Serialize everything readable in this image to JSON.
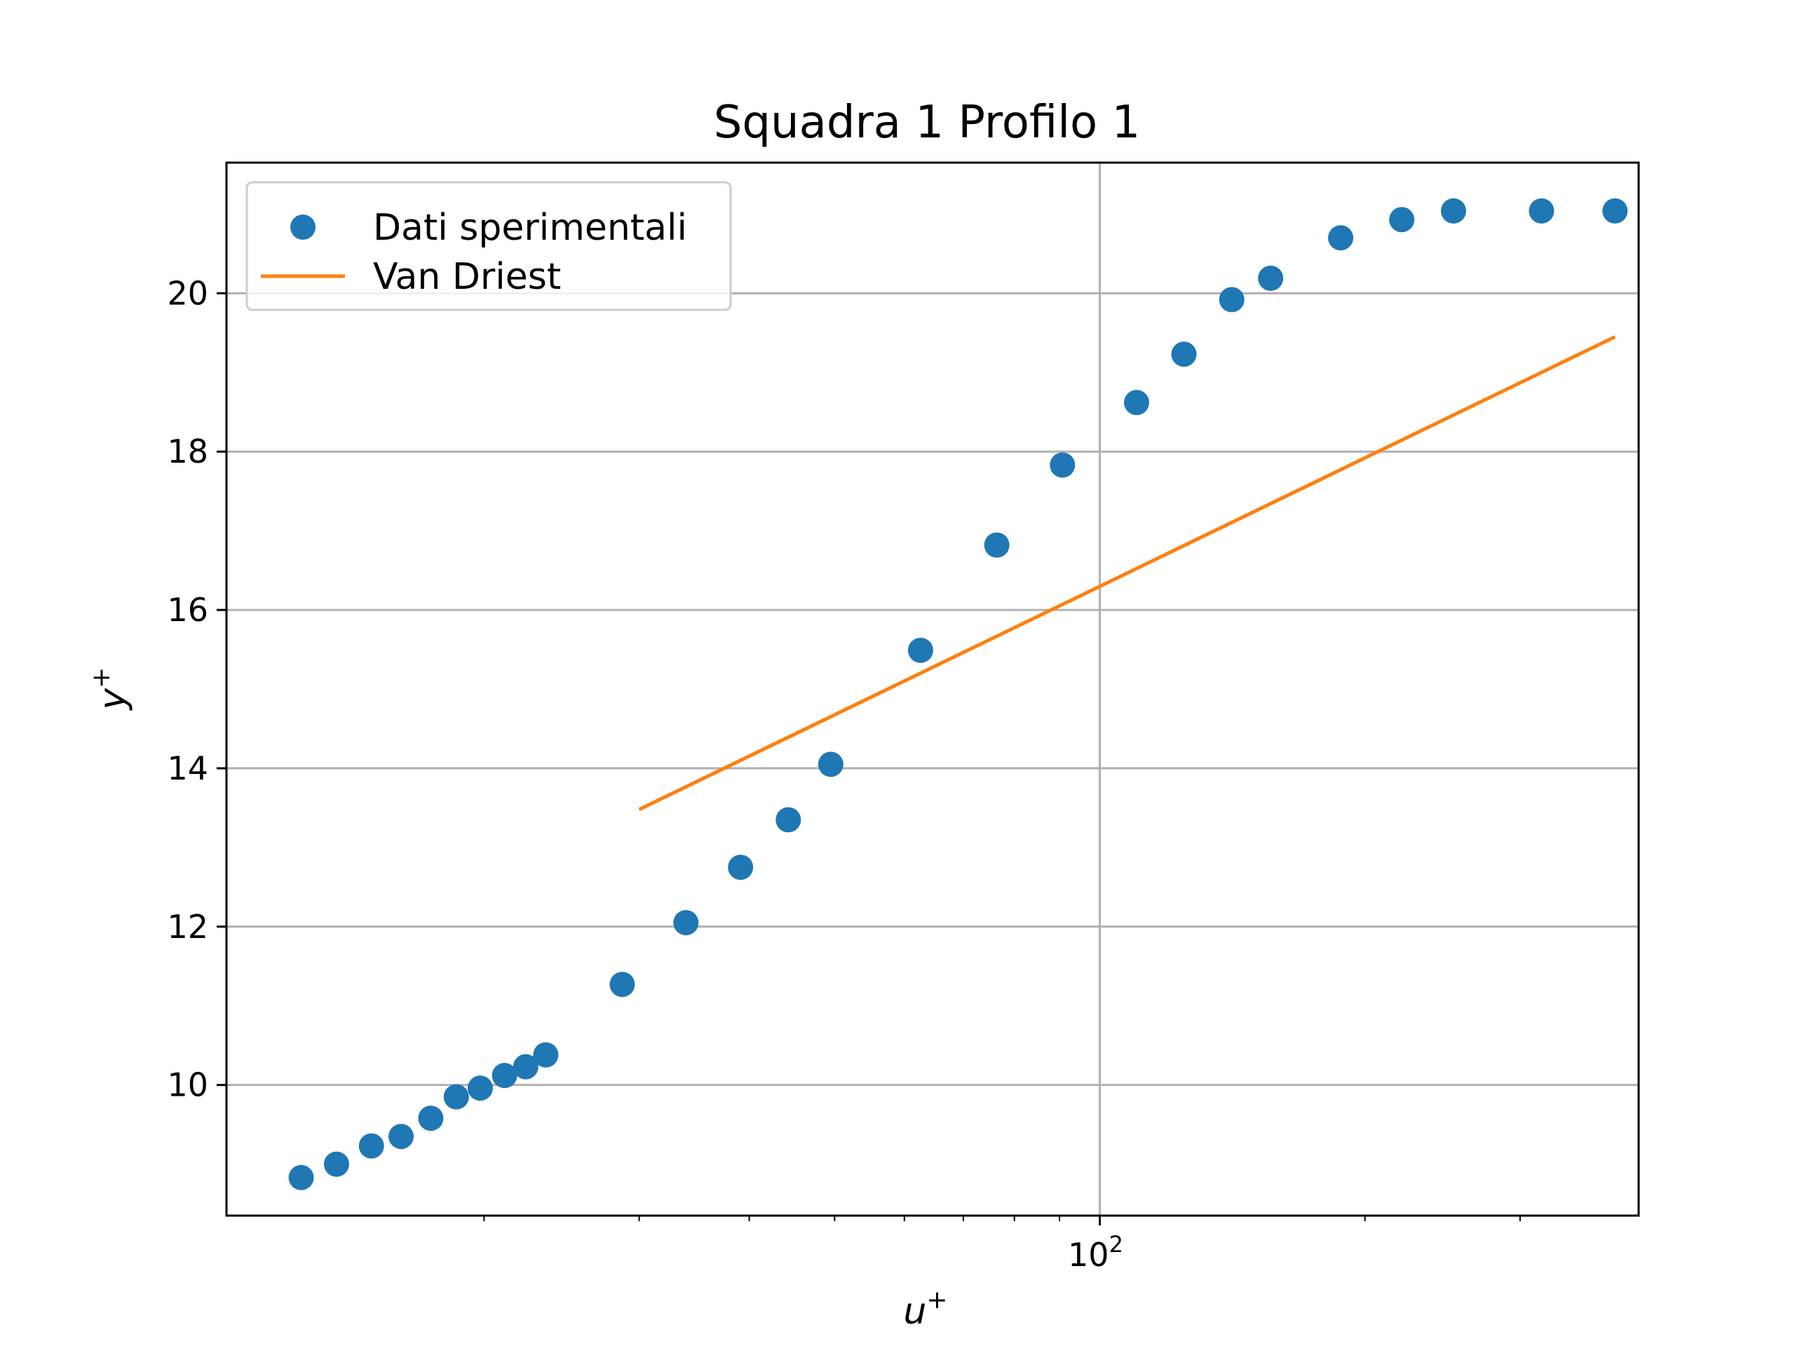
{
  "chart_data": {
    "type": "scatter",
    "title": "Squadra 1 Profilo 1",
    "xlabel": "u",
    "xlabel_sup": "+",
    "ylabel": "y",
    "ylabel_sup": "+",
    "xscale": "log",
    "xlim": [
      10.2,
      409
    ],
    "ylim": [
      8.35,
      21.65
    ],
    "grid": true,
    "legend_position": "upper left",
    "x_major_ticks": [
      {
        "value": 100,
        "base": "10",
        "exp": "2"
      }
    ],
    "x_minor_ticks": [
      20,
      30,
      40,
      50,
      60,
      70,
      80,
      90,
      200,
      300
    ],
    "y_ticks": [
      10,
      12,
      14,
      16,
      18,
      20
    ],
    "series": [
      {
        "name": "Dati sperimentali",
        "kind": "markers",
        "color": "#1f77b4",
        "x": [
          12.4,
          13.6,
          14.9,
          16.1,
          17.4,
          18.6,
          19.8,
          21.1,
          22.3,
          23.5,
          28.7,
          33.9,
          39.1,
          44.3,
          49.5,
          62.6,
          76.4,
          90.7,
          110.1,
          124.6,
          141.2,
          156.3,
          187.7,
          220.2,
          252.1,
          317.3,
          384.5
        ],
        "y": [
          8.83,
          9.0,
          9.23,
          9.35,
          9.58,
          9.85,
          9.96,
          10.12,
          10.23,
          10.38,
          11.27,
          12.05,
          12.75,
          13.35,
          14.05,
          15.49,
          16.82,
          17.83,
          18.62,
          19.23,
          19.92,
          20.19,
          20.7,
          20.93,
          21.04,
          21.04,
          21.04
        ]
      },
      {
        "name": "Van Driest",
        "kind": "line",
        "color": "#ff7f0e",
        "x": [
          30,
          384.5
        ],
        "y": [
          13.48,
          19.45
        ]
      }
    ]
  }
}
